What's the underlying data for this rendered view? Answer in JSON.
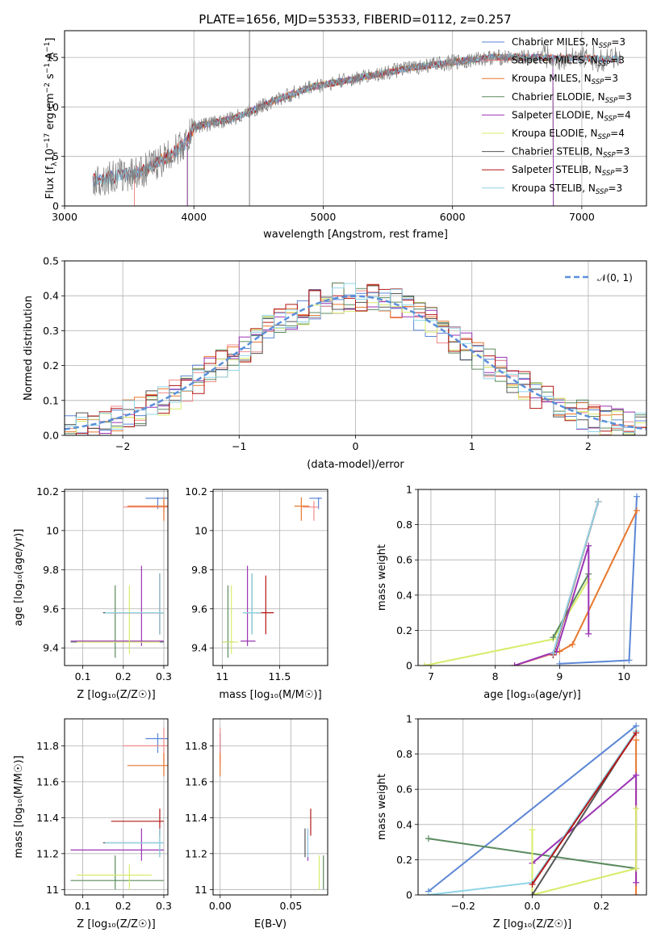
{
  "title": "PLATE=1656, MJD=53533, FIBERID=0112, z=0.257",
  "colors": {
    "Chabrier MILES": "#5b86d6",
    "Salpeter MILES": "#f08a8a",
    "Kroupa MILES": "#e8772e",
    "Chabrier ELODIE": "#5b8a5e",
    "Salpeter ELODIE": "#9b35b5",
    "Kroupa ELODIE": "#d7ec6a",
    "Chabrier STELIB": "#555555",
    "Salpeter STELIB": "#b31616",
    "Kroupa STELIB": "#8fd4e6",
    "normal": "#5b8fd9"
  },
  "models": [
    {
      "name": "Chabrier MILES",
      "label": "Chabrier MILES, N",
      "sub": "SSP",
      "n": "=3"
    },
    {
      "name": "Salpeter MILES",
      "label": "Salpeter MILES, N",
      "sub": "SSP",
      "n": "=3"
    },
    {
      "name": "Kroupa MILES",
      "label": "Kroupa MILES, N",
      "sub": "SSP",
      "n": "=3"
    },
    {
      "name": "Chabrier ELODIE",
      "label": "Chabrier ELODIE, N",
      "sub": "SSP",
      "n": "=3"
    },
    {
      "name": "Salpeter ELODIE",
      "label": "Salpeter ELODIE, N",
      "sub": "SSP",
      "n": "=4"
    },
    {
      "name": "Kroupa ELODIE",
      "label": "Kroupa ELODIE, N",
      "sub": "SSP",
      "n": "=4"
    },
    {
      "name": "Chabrier STELIB",
      "label": "Chabrier STELIB, N",
      "sub": "SSP",
      "n": "=3"
    },
    {
      "name": "Salpeter STELIB",
      "label": "Salpeter STELIB, N",
      "sub": "SSP",
      "n": "=3"
    },
    {
      "name": "Kroupa STELIB",
      "label": "Kroupa STELIB, N",
      "sub": "SSP",
      "n": "=3"
    }
  ],
  "chart_data": [
    {
      "id": "spectrum",
      "type": "line",
      "xlabel": "wavelength [Angstrom, rest frame]",
      "ylabel": "Flux [f",
      "ylabel_sub": "λ",
      "ylabel_rest": "10",
      "ylabel_sup": "−17",
      "ylabel_tail": " erg cm",
      "ylabel_sup2": "−2",
      "ylabel_tail2": " s",
      "ylabel_sup3": "−1",
      "ylabel_tail3": " A",
      "ylabel_sup4": "−1",
      "ylabel_end": "]",
      "xlim": [
        3000,
        7500
      ],
      "ylim": [
        0,
        17.7
      ],
      "xticks": [
        3000,
        4000,
        5000,
        6000,
        7000
      ],
      "yticks": [
        0,
        5,
        10,
        15
      ],
      "continuum": [
        [
          3220,
          2.6
        ],
        [
          3400,
          3.0
        ],
        [
          3600,
          3.5
        ],
        [
          3800,
          5.0
        ],
        [
          3950,
          6.5
        ],
        [
          4000,
          8.0
        ],
        [
          4300,
          8.8
        ],
        [
          4600,
          10.5
        ],
        [
          4900,
          12.0
        ],
        [
          5100,
          12.5
        ],
        [
          5300,
          13.0
        ],
        [
          5700,
          14.0
        ],
        [
          6000,
          14.5
        ],
        [
          6300,
          15.0
        ],
        [
          6700,
          15.0
        ],
        [
          7300,
          14.8
        ]
      ],
      "spike": {
        "x": 4430,
        "y": 17.7
      },
      "model_starts": {
        "Kroupa MILES": 3540,
        "Salpeter MILES": 3540,
        "Kroupa ELODIE": 3950,
        "Chabrier ELODIE": 3950,
        "Salpeter ELODIE": 3950
      },
      "model_ends": {
        "Kroupa ELODIE": 6780,
        "Chabrier ELODIE": 6780,
        "Salpeter ELODIE": 6780
      }
    },
    {
      "id": "residuals",
      "type": "histogram",
      "xlabel": "(data-model)/error",
      "ylabel": "Normed distribution",
      "xlim": [
        -2.5,
        2.5
      ],
      "ylim": [
        0,
        0.5
      ],
      "xticks": [
        -2,
        -1,
        0,
        1,
        2
      ],
      "xtick_labels": [
        "−2",
        "−1",
        "0",
        "1",
        "2"
      ],
      "yticks": [
        0.0,
        0.1,
        0.2,
        0.3,
        0.4,
        0.5
      ],
      "ytick_labels": [
        "0.0",
        "0.1",
        "0.2",
        "0.3",
        "0.4",
        "0.5"
      ],
      "legend": "𝒩(0, 1)",
      "bin_width": 0.1
    },
    {
      "id": "age-Z",
      "type": "errorbar",
      "xlabel": "Z [log₁₀(Z/Z☉)]",
      "ylabel": "age  [log₁₀(age/yr)]",
      "xlim": [
        0.055,
        0.31
      ],
      "ylim": [
        9.31,
        10.21
      ],
      "xticks": [
        0.1,
        0.2,
        0.3
      ],
      "yticks": [
        9.4,
        9.6,
        9.8,
        10.0,
        10.2
      ],
      "points": [
        {
          "model": "Chabrier MILES",
          "x": 0.285,
          "y": 10.165,
          "xerr": [
            0.255,
            0.31
          ],
          "yerr": [
            10.11,
            10.17
          ]
        },
        {
          "model": "Salpeter MILES",
          "x": 0.3,
          "y": 10.12,
          "xerr": [
            0.2,
            0.31
          ],
          "yerr": [
            10.09,
            10.15
          ]
        },
        {
          "model": "Kroupa MILES",
          "x": 0.3,
          "y": 10.125,
          "xerr": [
            0.21,
            0.31
          ],
          "yerr": [
            10.05,
            10.17
          ]
        },
        {
          "model": "Chabrier ELODIE",
          "x": 0.18,
          "y": 9.43,
          "xerr": [
            0.07,
            0.3
          ],
          "yerr": [
            9.35,
            9.72
          ]
        },
        {
          "model": "Salpeter ELODIE",
          "x": 0.245,
          "y": 9.435,
          "xerr": [
            0.07,
            0.3
          ],
          "yerr": [
            9.41,
            9.82
          ]
        },
        {
          "model": "Kroupa ELODIE",
          "x": 0.215,
          "y": 9.43,
          "xerr": [
            0.085,
            0.29
          ],
          "yerr": [
            9.37,
            9.72
          ]
        },
        {
          "model": "Chabrier STELIB",
          "x": 0.29,
          "y": 9.58,
          "xerr": [
            0.15,
            0.3
          ],
          "yerr": [
            9.47,
            9.78
          ]
        },
        {
          "model": "Salpeter STELIB",
          "x": 0.29,
          "y": 9.58,
          "xerr": [
            0.17,
            0.3
          ],
          "yerr": [
            9.47,
            9.78
          ]
        },
        {
          "model": "Kroupa STELIB",
          "x": 0.29,
          "y": 9.58,
          "xerr": [
            0.155,
            0.3
          ],
          "yerr": [
            9.47,
            9.78
          ]
        }
      ]
    },
    {
      "id": "age-mass",
      "type": "errorbar",
      "xlabel": "mass [log₁₀(M/M☉)]",
      "ylabel": "",
      "xlim": [
        10.92,
        11.92
      ],
      "ylim": [
        9.31,
        10.21
      ],
      "xticks": [
        11.0,
        11.5
      ],
      "yticks": [
        9.4,
        9.6,
        9.8,
        10.0,
        10.2
      ],
      "points": [
        {
          "model": "Chabrier MILES",
          "x": 11.84,
          "y": 10.165,
          "xerr": [
            11.76,
            11.87
          ],
          "yerr": [
            10.11,
            10.17
          ]
        },
        {
          "model": "Salpeter MILES",
          "x": 11.8,
          "y": 10.12,
          "xerr": [
            11.7,
            11.84
          ],
          "yerr": [
            10.05,
            10.15
          ]
        },
        {
          "model": "Kroupa MILES",
          "x": 11.69,
          "y": 10.125,
          "xerr": [
            11.63,
            11.76
          ],
          "yerr": [
            10.05,
            10.17
          ]
        },
        {
          "model": "Chabrier ELODIE",
          "x": 11.05,
          "y": 9.43,
          "xerr": [
            11.0,
            11.1
          ],
          "yerr": [
            9.35,
            9.72
          ]
        },
        {
          "model": "Salpeter ELODIE",
          "x": 11.22,
          "y": 9.435,
          "xerr": [
            11.16,
            11.29
          ],
          "yerr": [
            9.41,
            9.82
          ]
        },
        {
          "model": "Kroupa ELODIE",
          "x": 11.08,
          "y": 9.43,
          "xerr": [
            11.0,
            11.14
          ],
          "yerr": [
            9.37,
            9.72
          ]
        },
        {
          "model": "Chabrier STELIB",
          "x": 11.26,
          "y": 9.58,
          "xerr": [
            11.18,
            11.34
          ],
          "yerr": [
            9.47,
            9.78
          ]
        },
        {
          "model": "Salpeter STELIB",
          "x": 11.38,
          "y": 9.58,
          "xerr": [
            11.3,
            11.45
          ],
          "yerr": [
            9.47,
            9.77
          ]
        },
        {
          "model": "Kroupa STELIB",
          "x": 11.26,
          "y": 9.58,
          "xerr": [
            11.18,
            11.34
          ],
          "yerr": [
            9.47,
            9.78
          ]
        }
      ]
    },
    {
      "id": "weight-age",
      "type": "line",
      "xlabel": "age  [log₁₀(age/yr)]",
      "ylabel": "mass weight",
      "xlim": [
        6.8,
        10.35
      ],
      "ylim": [
        0,
        1.0
      ],
      "xticks": [
        7,
        8,
        9,
        10
      ],
      "yticks": [
        0.0,
        0.2,
        0.4,
        0.6,
        0.8,
        1.0
      ],
      "series": [
        {
          "model": "Chabrier MILES",
          "points": [
            [
              9.0,
              0.01
            ],
            [
              10.08,
              0.03
            ],
            [
              10.2,
              0.96
            ]
          ]
        },
        {
          "model": "Kroupa MILES",
          "points": [
            [
              8.3,
              0.0
            ],
            [
              9.0,
              0.08
            ],
            [
              9.2,
              0.12
            ],
            [
              10.2,
              0.88
            ]
          ]
        },
        {
          "model": "Salpeter MILES",
          "points": [
            [
              8.3,
              0.0
            ],
            [
              8.9,
              0.07
            ],
            [
              9.6,
              0.93
            ]
          ]
        },
        {
          "model": "Kroupa ELODIE",
          "points": [
            [
              6.9,
              0.0
            ],
            [
              8.9,
              0.15
            ],
            [
              9.45,
              0.49
            ]
          ]
        },
        {
          "model": "Chabrier ELODIE",
          "points": [
            [
              8.9,
              0.16
            ],
            [
              9.45,
              0.52
            ]
          ]
        },
        {
          "model": "Salpeter ELODIE",
          "points": [
            [
              8.3,
              0.0
            ],
            [
              8.95,
              0.08
            ],
            [
              9.45,
              0.68
            ],
            [
              9.45,
              0.18
            ]
          ]
        },
        {
          "model": "Chabrier STELIB",
          "points": [
            [
              8.9,
              0.06
            ],
            [
              9.6,
              0.93
            ]
          ]
        },
        {
          "model": "Salpeter STELIB",
          "points": [
            [
              8.9,
              0.06
            ],
            [
              9.6,
              0.93
            ]
          ]
        },
        {
          "model": "Kroupa STELIB",
          "points": [
            [
              8.9,
              0.07
            ],
            [
              9.6,
              0.93
            ]
          ]
        }
      ]
    },
    {
      "id": "mass-Z",
      "type": "errorbar",
      "xlabel": "Z [log₁₀(Z/Z☉)]",
      "ylabel": "mass [log₁₀(M/M☉)]",
      "xlim": [
        0.055,
        0.31
      ],
      "ylim": [
        10.97,
        11.95
      ],
      "xticks": [
        0.1,
        0.2,
        0.3
      ],
      "yticks": [
        11.0,
        11.2,
        11.4,
        11.6,
        11.8
      ],
      "points": [
        {
          "model": "Chabrier MILES",
          "x": 0.285,
          "y": 11.84,
          "xerr": [
            0.255,
            0.31
          ],
          "yerr": [
            11.76,
            11.87
          ]
        },
        {
          "model": "Salpeter MILES",
          "x": 0.3,
          "y": 11.8,
          "xerr": [
            0.2,
            0.31
          ],
          "yerr": [
            11.7,
            11.9
          ]
        },
        {
          "model": "Kroupa MILES",
          "x": 0.3,
          "y": 11.69,
          "xerr": [
            0.21,
            0.31
          ],
          "yerr": [
            11.63,
            11.76
          ]
        },
        {
          "model": "Chabrier ELODIE",
          "x": 0.18,
          "y": 11.05,
          "xerr": [
            0.07,
            0.3
          ],
          "yerr": [
            11.0,
            11.19
          ]
        },
        {
          "model": "Salpeter ELODIE",
          "x": 0.245,
          "y": 11.22,
          "xerr": [
            0.07,
            0.3
          ],
          "yerr": [
            11.16,
            11.34
          ]
        },
        {
          "model": "Kroupa ELODIE",
          "x": 0.215,
          "y": 11.08,
          "xerr": [
            0.085,
            0.27
          ],
          "yerr": [
            11.0,
            11.14
          ]
        },
        {
          "model": "Chabrier STELIB",
          "x": 0.29,
          "y": 11.26,
          "xerr": [
            0.15,
            0.3
          ],
          "yerr": [
            11.18,
            11.34
          ]
        },
        {
          "model": "Salpeter STELIB",
          "x": 0.29,
          "y": 11.38,
          "xerr": [
            0.17,
            0.3
          ],
          "yerr": [
            11.3,
            11.45
          ]
        },
        {
          "model": "Kroupa STELIB",
          "x": 0.29,
          "y": 11.26,
          "xerr": [
            0.155,
            0.3
          ],
          "yerr": [
            11.18,
            11.34
          ]
        }
      ]
    },
    {
      "id": "mass-EBV",
      "type": "errorbar",
      "xlabel": "E(B-V)",
      "ylabel": "",
      "xlim": [
        -0.005,
        0.076
      ],
      "ylim": [
        10.97,
        11.95
      ],
      "xticks": [
        0.0,
        0.05
      ],
      "xtick_labels": [
        "0.00",
        "0.05"
      ],
      "yticks": [
        11.0,
        11.2,
        11.4,
        11.6,
        11.8
      ],
      "points": [
        {
          "model": "Chabrier MILES",
          "x": 0.0,
          "y": 11.84,
          "xerr": [
            0.0,
            0.0
          ],
          "yerr": [
            11.76,
            11.87
          ]
        },
        {
          "model": "Salpeter MILES",
          "x": 0.0,
          "y": 11.8,
          "xerr": [
            0.0,
            0.0
          ],
          "yerr": [
            11.7,
            11.9
          ]
        },
        {
          "model": "Kroupa MILES",
          "x": 0.0,
          "y": 11.69,
          "xerr": [
            0.0,
            0.0
          ],
          "yerr": [
            11.63,
            11.76
          ]
        },
        {
          "model": "Chabrier ELODIE",
          "x": 0.073,
          "y": 11.05,
          "xerr": [
            0.073,
            0.073
          ],
          "yerr": [
            11.0,
            11.19
          ]
        },
        {
          "model": "Salpeter ELODIE",
          "x": 0.062,
          "y": 11.22,
          "xerr": [
            0.062,
            0.062
          ],
          "yerr": [
            11.16,
            11.34
          ]
        },
        {
          "model": "Kroupa ELODIE",
          "x": 0.07,
          "y": 11.08,
          "xerr": [
            0.07,
            0.07
          ],
          "yerr": [
            11.0,
            11.19
          ]
        },
        {
          "model": "Chabrier STELIB",
          "x": 0.06,
          "y": 11.26,
          "xerr": [
            0.06,
            0.06
          ],
          "yerr": [
            11.18,
            11.34
          ]
        },
        {
          "model": "Salpeter STELIB",
          "x": 0.064,
          "y": 11.38,
          "xerr": [
            0.064,
            0.064
          ],
          "yerr": [
            11.3,
            11.45
          ]
        },
        {
          "model": "Kroupa STELIB",
          "x": 0.062,
          "y": 11.26,
          "xerr": [
            0.062,
            0.062
          ],
          "yerr": [
            11.18,
            11.34
          ]
        }
      ]
    },
    {
      "id": "weight-Z",
      "type": "line",
      "xlabel": "Z [log₁₀(Z/Z☉)]",
      "ylabel": "mass weight",
      "xlim": [
        -0.33,
        0.33
      ],
      "ylim": [
        0,
        1.0
      ],
      "xticks": [
        -0.2,
        0.0,
        0.2
      ],
      "xtick_labels": [
        "−0.2",
        "0.0",
        "0.2"
      ],
      "yticks": [
        0.0,
        0.2,
        0.4,
        0.6,
        0.8,
        1.0
      ],
      "series": [
        {
          "model": "Chabrier MILES",
          "points": [
            [
              -0.3,
              0.02
            ],
            [
              0.3,
              0.96
            ]
          ]
        },
        {
          "model": "Kroupa MILES",
          "points": [
            [
              0.3,
              0.0
            ],
            [
              0.3,
              0.88
            ]
          ]
        },
        {
          "model": "Chabrier ELODIE",
          "points": [
            [
              -0.3,
              0.32
            ],
            [
              0.3,
              0.15
            ]
          ]
        },
        {
          "model": "Salpeter ELODIE",
          "points": [
            [
              0.0,
              0.18
            ],
            [
              0.3,
              0.68
            ],
            [
              0.3,
              0.07
            ]
          ]
        },
        {
          "model": "Kroupa ELODIE",
          "points": [
            [
              0.0,
              0.37
            ],
            [
              0.0,
              0.0
            ],
            [
              0.3,
              0.15
            ],
            [
              0.3,
              0.49
            ]
          ]
        },
        {
          "model": "Chabrier STELIB",
          "points": [
            [
              0.0,
              0.0
            ],
            [
              0.3,
              0.93
            ]
          ]
        },
        {
          "model": "Kroupa STELIB",
          "points": [
            [
              -0.3,
              0.0
            ],
            [
              0.0,
              0.07
            ],
            [
              0.3,
              0.93
            ]
          ]
        },
        {
          "model": "Salpeter STELIB",
          "points": [
            [
              0.0,
              0.06
            ],
            [
              0.3,
              0.92
            ]
          ]
        }
      ]
    }
  ]
}
